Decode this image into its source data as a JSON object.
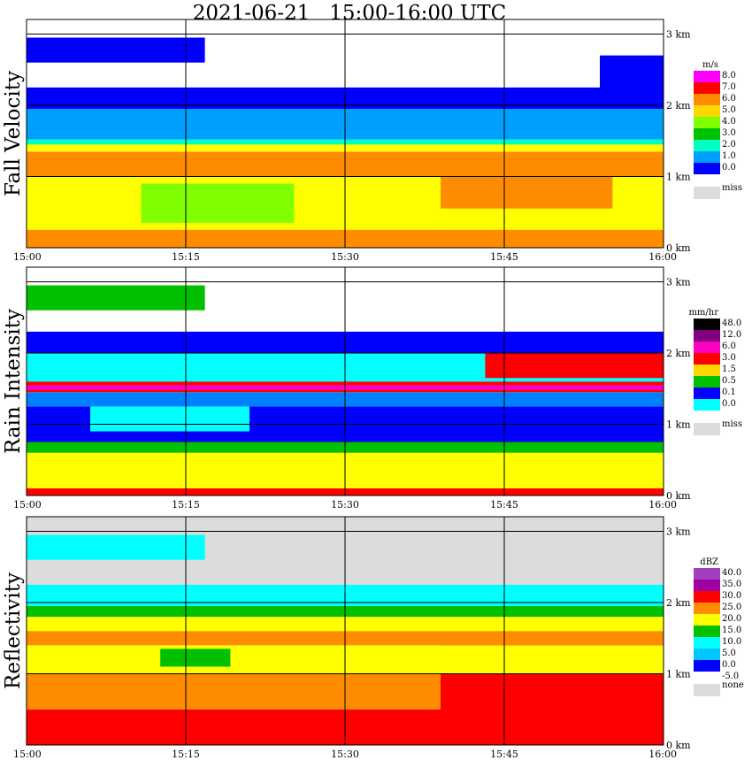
{
  "title": "2021-06-21   15:00-16:00 UTC",
  "colors": {
    "missing": "#dcdcdc",
    "grid": "#000000"
  },
  "chart_data": [
    {
      "type": "heatmap",
      "ylabel": "Fall Velocity",
      "x_ticks": [
        "15:00",
        "15:15",
        "15:30",
        "15:45",
        "16:00"
      ],
      "y_ticks": [
        "0 km",
        "1 km",
        "2 km",
        "3 km"
      ],
      "ylim": [
        0,
        3.1
      ],
      "legend_unit": "m/s",
      "legend_labels": [
        "8.0",
        "7.0",
        "6.0",
        "5.0",
        "4.0",
        "3.0",
        "2.0",
        "1.0",
        "0.0"
      ],
      "legend_colors": [
        "#ff00ff",
        "#ff0000",
        "#ff8c00",
        "#ffd700",
        "#80ff00",
        "#00c000",
        "#00ffc0",
        "#00a0ff",
        "#0000ff"
      ],
      "missing_label": "miss",
      "background": "#ffffff",
      "bands": [
        {
          "y0": 0.0,
          "y1": 1.0,
          "color": "#ffff00"
        },
        {
          "y0": 0.35,
          "y1": 0.9,
          "color": "#80ff00",
          "x0": 0.18,
          "x1": 0.42
        },
        {
          "y0": 0.55,
          "y1": 1.0,
          "color": "#ff8c00",
          "x0": 0.65,
          "x1": 0.92
        },
        {
          "y0": 0.0,
          "y1": 0.25,
          "color": "#ff8c00"
        },
        {
          "y0": 1.0,
          "y1": 1.35,
          "color": "#ff8c00"
        },
        {
          "y0": 1.35,
          "y1": 1.45,
          "color": "#ffff00"
        },
        {
          "y0": 1.45,
          "y1": 1.52,
          "color": "#00ffc0"
        },
        {
          "y0": 1.52,
          "y1": 1.95,
          "color": "#00a0ff"
        },
        {
          "y0": 1.95,
          "y1": 2.25,
          "color": "#0000ff"
        },
        {
          "y0": 2.6,
          "y1": 2.95,
          "color": "#0000ff",
          "x0": 0.0,
          "x1": 0.28
        },
        {
          "y0": 2.2,
          "y1": 2.7,
          "color": "#0000ff",
          "x0": 0.9,
          "x1": 1.0
        }
      ]
    },
    {
      "type": "heatmap",
      "ylabel": "Rain Intensity",
      "x_ticks": [
        "15:00",
        "15:15",
        "15:30",
        "15:45",
        "16:00"
      ],
      "y_ticks": [
        "0 km",
        "1 km",
        "2 km",
        "3 km"
      ],
      "ylim": [
        0,
        3.1
      ],
      "legend_unit": "mm/hr",
      "legend_labels": [
        "48.0",
        "12.0",
        "6.0",
        "3.0",
        "1.5",
        "0.5",
        "0.1",
        "0.0"
      ],
      "legend_colors": [
        "#000000",
        "#800080",
        "#ff00c0",
        "#ff0000",
        "#ffd700",
        "#00c000",
        "#0000ff",
        "#00ffff"
      ],
      "missing_label": "miss",
      "background": "#ffffff",
      "bands": [
        {
          "y0": 0.0,
          "y1": 0.8,
          "color": "#ffff00"
        },
        {
          "y0": 0.0,
          "y1": 0.1,
          "color": "#ff0000"
        },
        {
          "y0": 0.6,
          "y1": 0.8,
          "color": "#00c000"
        },
        {
          "y0": 0.75,
          "y1": 1.25,
          "color": "#0000ff"
        },
        {
          "y0": 0.9,
          "y1": 1.3,
          "color": "#00ffff",
          "x0": 0.1,
          "x1": 0.35
        },
        {
          "y0": 1.25,
          "y1": 1.45,
          "color": "#0080ff"
        },
        {
          "y0": 1.45,
          "y1": 1.6,
          "color": "#ff0000"
        },
        {
          "y0": 1.48,
          "y1": 1.55,
          "color": "#ff00c0"
        },
        {
          "y0": 1.6,
          "y1": 2.0,
          "color": "#00ffff"
        },
        {
          "y0": 1.65,
          "y1": 2.05,
          "color": "#ff0000",
          "x0": 0.72,
          "x1": 1.0
        },
        {
          "y0": 2.0,
          "y1": 2.3,
          "color": "#0000ff"
        },
        {
          "y0": 2.6,
          "y1": 2.95,
          "color": "#00c000",
          "x0": 0.0,
          "x1": 0.28
        }
      ]
    },
    {
      "type": "heatmap",
      "ylabel": "Reflectivity",
      "x_ticks": [
        "15:00",
        "15:15",
        "15:30",
        "15:45",
        "16:00"
      ],
      "y_ticks": [
        "0 km",
        "1 km",
        "2 km",
        "3 km"
      ],
      "ylim": [
        0,
        3.1
      ],
      "legend_unit": "dBZ",
      "legend_labels": [
        "40.0",
        "35.0",
        "30.0",
        "25.0",
        "20.0",
        "15.0",
        "10.0",
        "5.0",
        "0.0",
        "-5.0"
      ],
      "legend_colors": [
        "#a040c0",
        "#a000a0",
        "#ff0000",
        "#ff8c00",
        "#ffff00",
        "#00c000",
        "#00ffff",
        "#00c8ff",
        "#0000ff"
      ],
      "missing_label": "none",
      "background": "#dcdcdc",
      "bands": [
        {
          "y0": 0.0,
          "y1": 0.5,
          "color": "#ff0000"
        },
        {
          "y0": 0.5,
          "y1": 1.0,
          "color": "#ff8c00"
        },
        {
          "y0": 0.0,
          "y1": 1.55,
          "color": "#ff0000",
          "x0": 0.65,
          "x1": 1.0
        },
        {
          "y0": 1.0,
          "y1": 1.4,
          "color": "#ffff00"
        },
        {
          "y0": 1.4,
          "y1": 1.6,
          "color": "#ff8c00"
        },
        {
          "y0": 1.6,
          "y1": 1.8,
          "color": "#ffff00"
        },
        {
          "y0": 1.8,
          "y1": 1.95,
          "color": "#00c000"
        },
        {
          "y0": 1.95,
          "y1": 2.25,
          "color": "#00ffff"
        },
        {
          "y0": 1.1,
          "y1": 1.35,
          "color": "#00c000",
          "x0": 0.21,
          "x1": 0.32
        },
        {
          "y0": 2.6,
          "y1": 2.95,
          "color": "#00ffff",
          "x0": 0.0,
          "x1": 0.28
        }
      ]
    }
  ]
}
